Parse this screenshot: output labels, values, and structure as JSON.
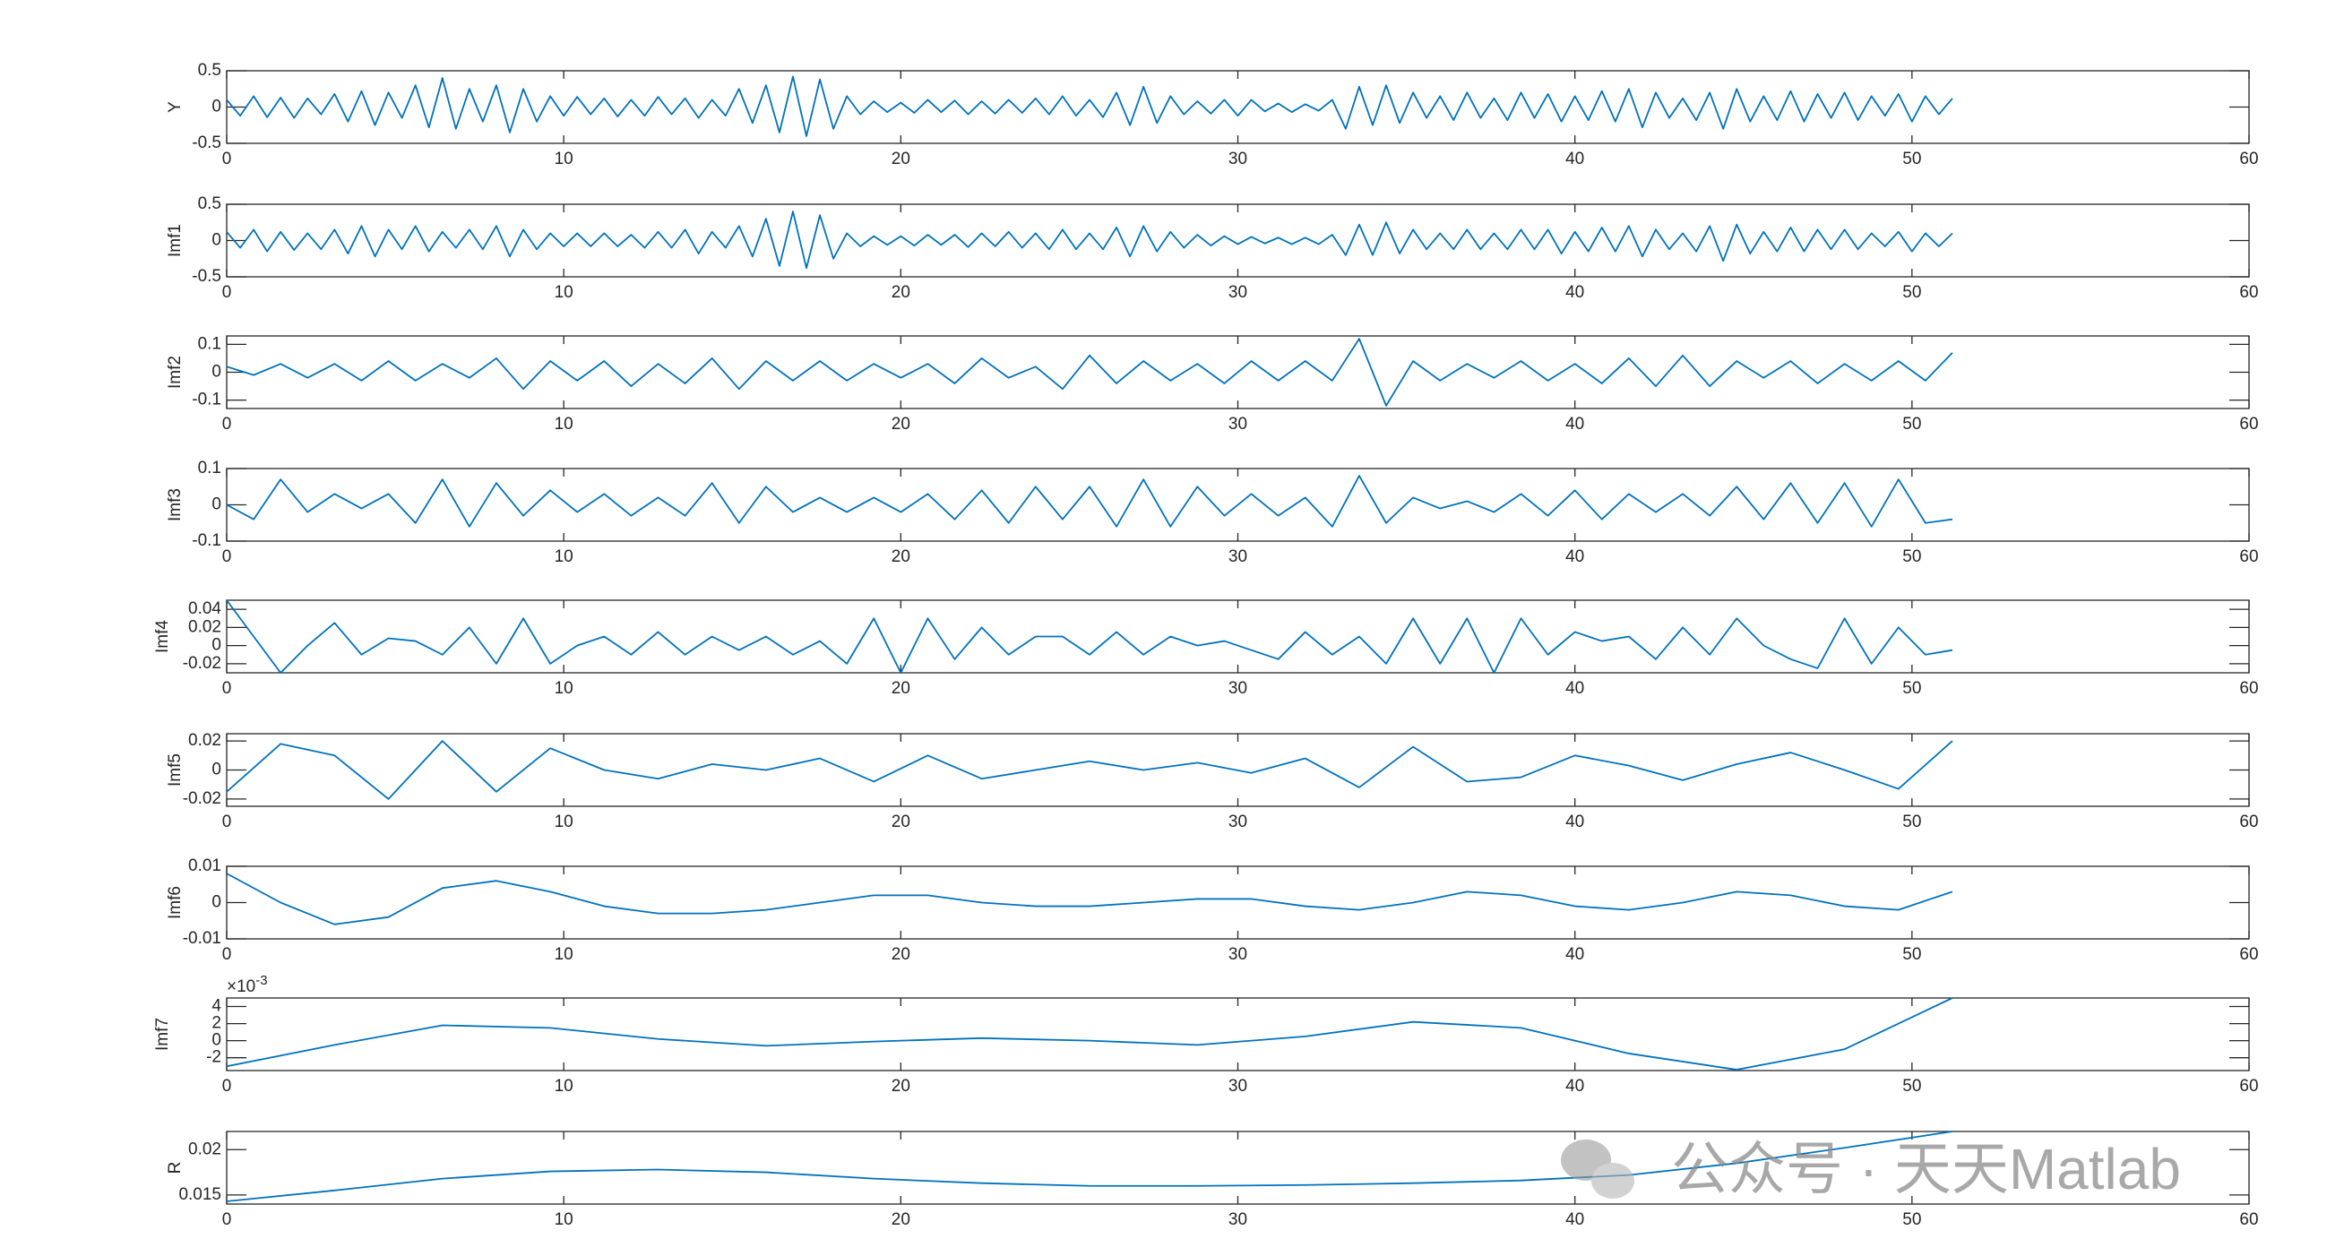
{
  "chart_data": [
    {
      "type": "line",
      "ylabel": "Y",
      "color": "#0072bd",
      "xlim": [
        0,
        60
      ],
      "ylim": [
        -0.5,
        0.5
      ],
      "xticks": [
        0,
        10,
        20,
        30,
        40,
        50,
        60
      ],
      "yticks": [
        -0.5,
        0,
        0.5
      ],
      "x": [
        0,
        0.4,
        0.8,
        1.2,
        1.6,
        2,
        2.4,
        2.8,
        3.2,
        3.6,
        4,
        4.4,
        4.8,
        5.2,
        5.6,
        6,
        6.4,
        6.8,
        7.2,
        7.6,
        8,
        8.4,
        8.8,
        9.2,
        9.6,
        10,
        10.4,
        10.8,
        11.2,
        11.6,
        12,
        12.4,
        12.8,
        13.2,
        13.6,
        14,
        14.4,
        14.8,
        15.2,
        15.6,
        16,
        16.4,
        16.8,
        17.2,
        17.6,
        18,
        18.4,
        18.8,
        19.2,
        19.6,
        20,
        20.4,
        20.8,
        21.2,
        21.6,
        22,
        22.4,
        22.8,
        23.2,
        23.6,
        24,
        24.4,
        24.8,
        25.2,
        25.6,
        26,
        26.4,
        26.8,
        27.2,
        27.6,
        28,
        28.4,
        28.8,
        29.2,
        29.6,
        30,
        30.4,
        30.8,
        31.2,
        31.6,
        32,
        32.4,
        32.8,
        33.2,
        33.6,
        34,
        34.4,
        34.8,
        35.2,
        35.6,
        36,
        36.4,
        36.8,
        37.2,
        37.6,
        38,
        38.4,
        38.8,
        39.2,
        39.6,
        40,
        40.4,
        40.8,
        41.2,
        41.6,
        42,
        42.4,
        42.8,
        43.2,
        43.6,
        44,
        44.4,
        44.8,
        45.2,
        45.6,
        46,
        46.4,
        46.8,
        47.2,
        47.6,
        48,
        48.4,
        48.8,
        49.2,
        49.6,
        50,
        50.4,
        50.8,
        51.2
      ],
      "values": [
        0.1,
        -0.12,
        0.15,
        -0.14,
        0.13,
        -0.15,
        0.12,
        -0.1,
        0.18,
        -0.2,
        0.22,
        -0.25,
        0.2,
        -0.15,
        0.3,
        -0.28,
        0.4,
        -0.3,
        0.25,
        -0.2,
        0.3,
        -0.35,
        0.25,
        -0.2,
        0.15,
        -0.12,
        0.14,
        -0.1,
        0.12,
        -0.13,
        0.1,
        -0.12,
        0.14,
        -0.1,
        0.12,
        -0.15,
        0.1,
        -0.12,
        0.25,
        -0.22,
        0.3,
        -0.35,
        0.42,
        -0.4,
        0.38,
        -0.3,
        0.15,
        -0.1,
        0.08,
        -0.07,
        0.06,
        -0.08,
        0.1,
        -0.07,
        0.09,
        -0.1,
        0.08,
        -0.09,
        0.1,
        -0.08,
        0.12,
        -0.1,
        0.15,
        -0.12,
        0.1,
        -0.14,
        0.2,
        -0.25,
        0.28,
        -0.22,
        0.15,
        -0.1,
        0.08,
        -0.09,
        0.1,
        -0.12,
        0.1,
        -0.06,
        0.05,
        -0.07,
        0.04,
        -0.05,
        0.1,
        -0.3,
        0.28,
        -0.25,
        0.3,
        -0.22,
        0.2,
        -0.15,
        0.15,
        -0.18,
        0.2,
        -0.15,
        0.12,
        -0.18,
        0.2,
        -0.15,
        0.18,
        -0.2,
        0.15,
        -0.18,
        0.22,
        -0.2,
        0.25,
        -0.28,
        0.2,
        -0.15,
        0.12,
        -0.18,
        0.2,
        -0.3,
        0.25,
        -0.2,
        0.15,
        -0.18,
        0.22,
        -0.2,
        0.18,
        -0.15,
        0.2,
        -0.18,
        0.15,
        -0.12,
        0.18,
        -0.2,
        0.15,
        -0.1,
        0.12
      ]
    },
    {
      "type": "line",
      "ylabel": "Imf1",
      "color": "#0072bd",
      "xlim": [
        0,
        60
      ],
      "ylim": [
        -0.5,
        0.5
      ],
      "xticks": [
        0,
        10,
        20,
        30,
        40,
        50,
        60
      ],
      "yticks": [
        -0.5,
        0,
        0.5
      ],
      "x": [
        0,
        0.4,
        0.8,
        1.2,
        1.6,
        2,
        2.4,
        2.8,
        3.2,
        3.6,
        4,
        4.4,
        4.8,
        5.2,
        5.6,
        6,
        6.4,
        6.8,
        7.2,
        7.6,
        8,
        8.4,
        8.8,
        9.2,
        9.6,
        10,
        10.4,
        10.8,
        11.2,
        11.6,
        12,
        12.4,
        12.8,
        13.2,
        13.6,
        14,
        14.4,
        14.8,
        15.2,
        15.6,
        16,
        16.4,
        16.8,
        17.2,
        17.6,
        18,
        18.4,
        18.8,
        19.2,
        19.6,
        20,
        20.4,
        20.8,
        21.2,
        21.6,
        22,
        22.4,
        22.8,
        23.2,
        23.6,
        24,
        24.4,
        24.8,
        25.2,
        25.6,
        26,
        26.4,
        26.8,
        27.2,
        27.6,
        28,
        28.4,
        28.8,
        29.2,
        29.6,
        30,
        30.4,
        30.8,
        31.2,
        31.6,
        32,
        32.4,
        32.8,
        33.2,
        33.6,
        34,
        34.4,
        34.8,
        35.2,
        35.6,
        36,
        36.4,
        36.8,
        37.2,
        37.6,
        38,
        38.4,
        38.8,
        39.2,
        39.6,
        40,
        40.4,
        40.8,
        41.2,
        41.6,
        42,
        42.4,
        42.8,
        43.2,
        43.6,
        44,
        44.4,
        44.8,
        45.2,
        45.6,
        46,
        46.4,
        46.8,
        47.2,
        47.6,
        48,
        48.4,
        48.8,
        49.2,
        49.6,
        50,
        50.4,
        50.8,
        51.2
      ],
      "values": [
        0.12,
        -0.1,
        0.15,
        -0.15,
        0.12,
        -0.13,
        0.1,
        -0.12,
        0.15,
        -0.18,
        0.2,
        -0.22,
        0.15,
        -0.12,
        0.2,
        -0.15,
        0.12,
        -0.1,
        0.15,
        -0.12,
        0.2,
        -0.22,
        0.15,
        -0.12,
        0.1,
        -0.08,
        0.1,
        -0.08,
        0.1,
        -0.08,
        0.08,
        -0.1,
        0.12,
        -0.1,
        0.15,
        -0.18,
        0.12,
        -0.1,
        0.2,
        -0.22,
        0.3,
        -0.35,
        0.4,
        -0.38,
        0.35,
        -0.25,
        0.1,
        -0.08,
        0.06,
        -0.06,
        0.06,
        -0.07,
        0.08,
        -0.06,
        0.08,
        -0.09,
        0.1,
        -0.08,
        0.12,
        -0.1,
        0.1,
        -0.12,
        0.15,
        -0.12,
        0.1,
        -0.12,
        0.18,
        -0.22,
        0.2,
        -0.15,
        0.12,
        -0.1,
        0.08,
        -0.07,
        0.06,
        -0.05,
        0.05,
        -0.04,
        0.04,
        -0.05,
        0.04,
        -0.05,
        0.08,
        -0.2,
        0.22,
        -0.2,
        0.25,
        -0.18,
        0.15,
        -0.12,
        0.1,
        -0.12,
        0.15,
        -0.12,
        0.1,
        -0.12,
        0.15,
        -0.12,
        0.15,
        -0.18,
        0.12,
        -0.15,
        0.18,
        -0.15,
        0.2,
        -0.22,
        0.15,
        -0.12,
        0.1,
        -0.15,
        0.2,
        -0.28,
        0.22,
        -0.18,
        0.12,
        -0.15,
        0.18,
        -0.15,
        0.15,
        -0.12,
        0.15,
        -0.12,
        0.1,
        -0.08,
        0.12,
        -0.15,
        0.1,
        -0.08,
        0.1
      ]
    },
    {
      "type": "line",
      "ylabel": "Imf2",
      "color": "#0072bd",
      "xlim": [
        0,
        60
      ],
      "ylim": [
        -0.13,
        0.13
      ],
      "xticks": [
        0,
        10,
        20,
        30,
        40,
        50,
        60
      ],
      "yticks": [
        -0.1,
        0,
        0.1
      ],
      "x": [
        0,
        0.8,
        1.6,
        2.4,
        3.2,
        4,
        4.8,
        5.6,
        6.4,
        7.2,
        8,
        8.8,
        9.6,
        10.4,
        11.2,
        12,
        12.8,
        13.6,
        14.4,
        15.2,
        16,
        16.8,
        17.6,
        18.4,
        19.2,
        20,
        20.8,
        21.6,
        22.4,
        23.2,
        24,
        24.8,
        25.6,
        26.4,
        27.2,
        28,
        28.8,
        29.6,
        30.4,
        31.2,
        32,
        32.8,
        33.6,
        34.4,
        35.2,
        36,
        36.8,
        37.6,
        38.4,
        39.2,
        40,
        40.8,
        41.6,
        42.4,
        43.2,
        44,
        44.8,
        45.6,
        46.4,
        47.2,
        48,
        48.8,
        49.6,
        50.4,
        51.2
      ],
      "values": [
        0.02,
        -0.01,
        0.03,
        -0.02,
        0.03,
        -0.03,
        0.04,
        -0.03,
        0.03,
        -0.02,
        0.05,
        -0.06,
        0.04,
        -0.03,
        0.04,
        -0.05,
        0.03,
        -0.04,
        0.05,
        -0.06,
        0.04,
        -0.03,
        0.04,
        -0.03,
        0.03,
        -0.02,
        0.03,
        -0.04,
        0.05,
        -0.02,
        0.02,
        -0.06,
        0.06,
        -0.04,
        0.04,
        -0.03,
        0.03,
        -0.04,
        0.04,
        -0.03,
        0.04,
        -0.03,
        0.12,
        -0.12,
        0.04,
        -0.03,
        0.03,
        -0.02,
        0.04,
        -0.03,
        0.03,
        -0.04,
        0.05,
        -0.05,
        0.06,
        -0.05,
        0.04,
        -0.02,
        0.04,
        -0.04,
        0.03,
        -0.03,
        0.04,
        -0.03,
        0.07
      ]
    },
    {
      "type": "line",
      "ylabel": "Imf3",
      "color": "#0072bd",
      "xlim": [
        0,
        60
      ],
      "ylim": [
        -0.1,
        0.1
      ],
      "xticks": [
        0,
        10,
        20,
        30,
        40,
        50,
        60
      ],
      "yticks": [
        -0.1,
        0,
        0.1
      ],
      "x": [
        0,
        0.8,
        1.6,
        2.4,
        3.2,
        4,
        4.8,
        5.6,
        6.4,
        7.2,
        8,
        8.8,
        9.6,
        10.4,
        11.2,
        12,
        12.8,
        13.6,
        14.4,
        15.2,
        16,
        16.8,
        17.6,
        18.4,
        19.2,
        20,
        20.8,
        21.6,
        22.4,
        23.2,
        24,
        24.8,
        25.6,
        26.4,
        27.2,
        28,
        28.8,
        29.6,
        30.4,
        31.2,
        32,
        32.8,
        33.6,
        34.4,
        35.2,
        36,
        36.8,
        37.6,
        38.4,
        39.2,
        40,
        40.8,
        41.6,
        42.4,
        43.2,
        44,
        44.8,
        45.6,
        46.4,
        47.2,
        48,
        48.8,
        49.6,
        50.4,
        51.2
      ],
      "values": [
        0,
        -0.04,
        0.07,
        -0.02,
        0.03,
        -0.01,
        0.03,
        -0.05,
        0.07,
        -0.06,
        0.06,
        -0.03,
        0.04,
        -0.02,
        0.03,
        -0.03,
        0.02,
        -0.03,
        0.06,
        -0.05,
        0.05,
        -0.02,
        0.02,
        -0.02,
        0.02,
        -0.02,
        0.03,
        -0.04,
        0.04,
        -0.05,
        0.05,
        -0.04,
        0.05,
        -0.06,
        0.07,
        -0.06,
        0.05,
        -0.03,
        0.03,
        -0.03,
        0.02,
        -0.06,
        0.08,
        -0.05,
        0.02,
        -0.01,
        0.01,
        -0.02,
        0.03,
        -0.03,
        0.04,
        -0.04,
        0.03,
        -0.02,
        0.03,
        -0.03,
        0.05,
        -0.04,
        0.06,
        -0.05,
        0.06,
        -0.06,
        0.07,
        -0.05,
        -0.04
      ]
    },
    {
      "type": "line",
      "ylabel": "Imf4",
      "color": "#0072bd",
      "xlim": [
        0,
        60
      ],
      "ylim": [
        -0.03,
        0.05
      ],
      "xticks": [
        0,
        10,
        20,
        30,
        40,
        50,
        60
      ],
      "yticks": [
        -0.02,
        0,
        0.02,
        0.04
      ],
      "x": [
        0,
        0.8,
        1.6,
        2.4,
        3.2,
        4,
        4.8,
        5.6,
        6.4,
        7.2,
        8,
        8.8,
        9.6,
        10.4,
        11.2,
        12,
        12.8,
        13.6,
        14.4,
        15.2,
        16,
        16.8,
        17.6,
        18.4,
        19.2,
        20,
        20.8,
        21.6,
        22.4,
        23.2,
        24,
        24.8,
        25.6,
        26.4,
        27.2,
        28,
        28.8,
        29.6,
        30.4,
        31.2,
        32,
        32.8,
        33.6,
        34.4,
        35.2,
        36,
        36.8,
        37.6,
        38.4,
        39.2,
        40,
        40.8,
        41.6,
        42.4,
        43.2,
        44,
        44.8,
        45.6,
        46.4,
        47.2,
        48,
        48.8,
        49.6,
        50.4,
        51.2
      ],
      "values": [
        0.05,
        0.01,
        -0.03,
        0,
        0.025,
        -0.01,
        0.008,
        0.005,
        -0.01,
        0.02,
        -0.02,
        0.03,
        -0.02,
        0,
        0.01,
        -0.01,
        0.015,
        -0.01,
        0.01,
        -0.005,
        0.01,
        -0.01,
        0.005,
        -0.02,
        0.03,
        -0.03,
        0.03,
        -0.015,
        0.02,
        -0.01,
        0.01,
        0.01,
        -0.01,
        0.015,
        -0.01,
        0.01,
        0,
        0.005,
        -0.005,
        -0.015,
        0.015,
        -0.01,
        0.01,
        -0.02,
        0.03,
        -0.02,
        0.03,
        -0.03,
        0.03,
        -0.01,
        0.015,
        0.005,
        0.01,
        -0.015,
        0.02,
        -0.01,
        0.03,
        0,
        -0.015,
        -0.025,
        0.03,
        -0.02,
        0.02,
        -0.01,
        -0.005
      ]
    },
    {
      "type": "line",
      "ylabel": "Imf5",
      "color": "#0072bd",
      "xlim": [
        0,
        60
      ],
      "ylim": [
        -0.025,
        0.025
      ],
      "xticks": [
        0,
        10,
        20,
        30,
        40,
        50,
        60
      ],
      "yticks": [
        -0.02,
        0,
        0.02
      ],
      "x": [
        0,
        1.6,
        3.2,
        4.8,
        6.4,
        8,
        9.6,
        11.2,
        12.8,
        14.4,
        16,
        17.6,
        19.2,
        20.8,
        22.4,
        24,
        25.6,
        27.2,
        28.8,
        30.4,
        32,
        33.6,
        35.2,
        36.8,
        38.4,
        40,
        41.6,
        43.2,
        44.8,
        46.4,
        48,
        49.6,
        51.2
      ],
      "values": [
        -0.015,
        0.018,
        0.01,
        -0.02,
        0.02,
        -0.015,
        0.015,
        0,
        -0.006,
        0.004,
        0,
        0.008,
        -0.008,
        0.01,
        -0.006,
        0,
        0.006,
        0,
        0.005,
        -0.002,
        0.008,
        -0.012,
        0.016,
        -0.008,
        -0.005,
        0.01,
        0.003,
        -0.007,
        0.004,
        0.012,
        0,
        -0.013,
        0.02
      ]
    },
    {
      "type": "line",
      "ylabel": "Imf6",
      "color": "#0072bd",
      "xlim": [
        0,
        60
      ],
      "ylim": [
        -0.01,
        0.01
      ],
      "xticks": [
        0,
        10,
        20,
        30,
        40,
        50,
        60
      ],
      "yticks": [
        -0.01,
        0,
        0.01
      ],
      "x": [
        0,
        1.6,
        3.2,
        4.8,
        6.4,
        8,
        9.6,
        11.2,
        12.8,
        14.4,
        16,
        17.6,
        19.2,
        20.8,
        22.4,
        24,
        25.6,
        27.2,
        28.8,
        30.4,
        32,
        33.6,
        35.2,
        36.8,
        38.4,
        40,
        41.6,
        43.2,
        44.8,
        46.4,
        48,
        49.6,
        51.2
      ],
      "values": [
        0.008,
        0,
        -0.006,
        -0.004,
        0.004,
        0.006,
        0.003,
        -0.001,
        -0.003,
        -0.003,
        -0.002,
        0,
        0.002,
        0.002,
        0,
        -0.001,
        -0.001,
        0,
        0.001,
        0.001,
        -0.001,
        -0.002,
        0,
        0.003,
        0.002,
        -0.001,
        -0.002,
        0,
        0.003,
        0.002,
        -0.001,
        -0.002,
        0.003
      ]
    },
    {
      "type": "line",
      "ylabel": "Imf7",
      "exponent_base": "×10",
      "exponent_power": "-3",
      "color": "#0072bd",
      "xlim": [
        0,
        60
      ],
      "ylim": [
        -3.5,
        5
      ],
      "xticks": [
        0,
        10,
        20,
        30,
        40,
        50,
        60
      ],
      "yticks": [
        -2,
        0,
        2,
        4
      ],
      "x": [
        0,
        3.2,
        6.4,
        9.6,
        12.8,
        16,
        19.2,
        22.4,
        25.6,
        28.8,
        32,
        35.2,
        38.4,
        41.6,
        44.8,
        48,
        51.2
      ],
      "values": [
        -3,
        -0.5,
        1.8,
        1.5,
        0.2,
        -0.6,
        -0.1,
        0.3,
        0,
        -0.5,
        0.5,
        2.2,
        1.5,
        -1.5,
        -3.4,
        -1,
        5
      ]
    },
    {
      "type": "line",
      "ylabel": "R",
      "color": "#0072bd",
      "xlim": [
        0,
        60
      ],
      "ylim": [
        0.014,
        0.022
      ],
      "xticks": [
        0,
        10,
        20,
        30,
        40,
        50,
        60
      ],
      "yticks": [
        0.015,
        0.02
      ],
      "x": [
        0,
        3.2,
        6.4,
        9.6,
        12.8,
        16,
        19.2,
        22.4,
        25.6,
        28.8,
        32,
        35.2,
        38.4,
        41.6,
        44.8,
        48,
        51.2
      ],
      "values": [
        0.0143,
        0.0155,
        0.0168,
        0.0176,
        0.0178,
        0.0175,
        0.0168,
        0.0163,
        0.016,
        0.016,
        0.0161,
        0.0163,
        0.0166,
        0.0172,
        0.0185,
        0.0202,
        0.022
      ]
    }
  ],
  "watermark": "公众号 · 天天Matlab"
}
